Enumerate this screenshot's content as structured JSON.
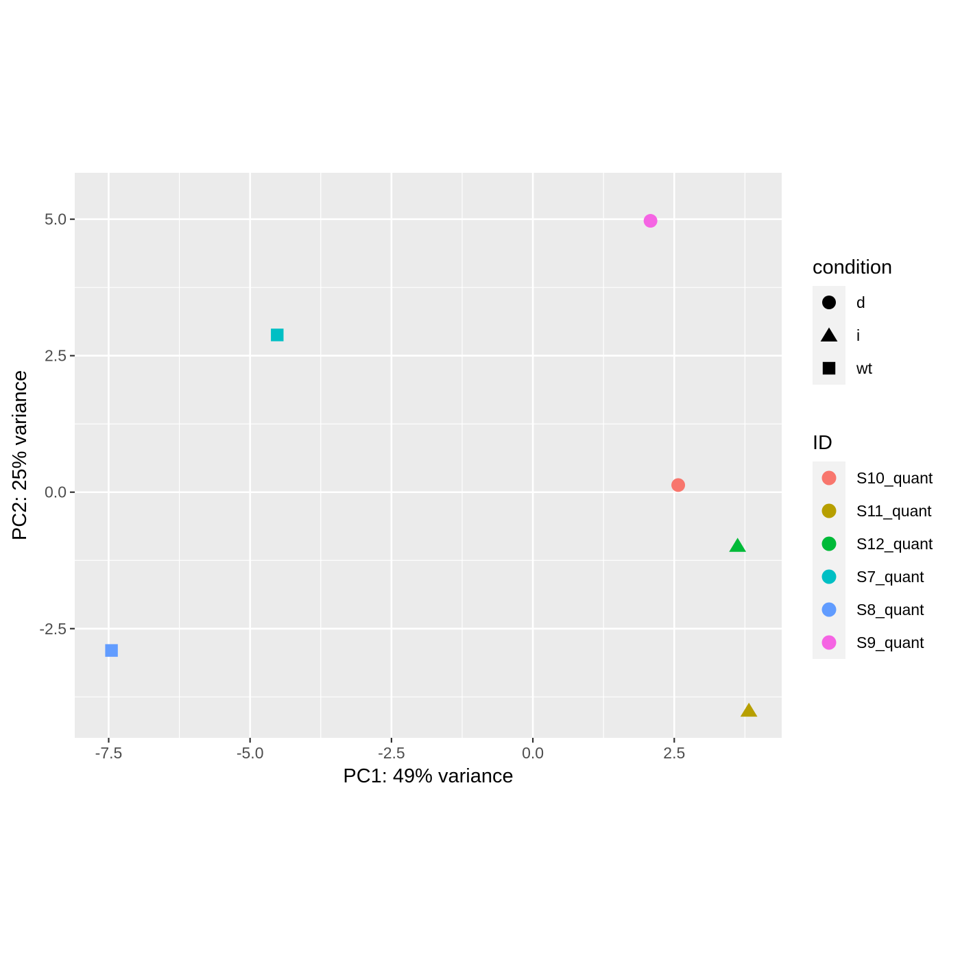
{
  "chart_data": {
    "type": "scatter",
    "title": "",
    "xlabel": "PC1: 49% variance",
    "ylabel": "PC2: 25% variance",
    "xlim": [
      -8.1,
      4.4
    ],
    "ylim": [
      -4.5,
      5.85
    ],
    "x_ticks": [
      -7.5,
      -5.0,
      -2.5,
      0.0,
      2.5
    ],
    "x_tick_labels": [
      "-7.5",
      "-5.0",
      "-2.5",
      "0.0",
      "2.5"
    ],
    "y_ticks": [
      -2.5,
      0.0,
      2.5,
      5.0
    ],
    "y_tick_labels": [
      "-2.5",
      "0.0",
      "2.5",
      "5.0"
    ],
    "grid": true,
    "legend_position": "right",
    "points": [
      {
        "id": "S10_quant",
        "condition": "d",
        "x": 2.57,
        "y": 0.13
      },
      {
        "id": "S11_quant",
        "condition": "i",
        "x": 3.82,
        "y": -4.0
      },
      {
        "id": "S12_quant",
        "condition": "i",
        "x": 3.62,
        "y": -0.98
      },
      {
        "id": "S7_quant",
        "condition": "wt",
        "x": -4.52,
        "y": 2.88
      },
      {
        "id": "S8_quant",
        "condition": "wt",
        "x": -7.45,
        "y": -2.9
      },
      {
        "id": "S9_quant",
        "condition": "d",
        "x": 2.08,
        "y": 4.97
      }
    ],
    "legends": [
      {
        "title": "condition",
        "kind": "shape",
        "entries": [
          {
            "label": "d",
            "shape": "circle"
          },
          {
            "label": "i",
            "shape": "triangle"
          },
          {
            "label": "wt",
            "shape": "square"
          }
        ]
      },
      {
        "title": "ID",
        "kind": "color",
        "entries": [
          {
            "label": "S10_quant",
            "color": "#F8766D"
          },
          {
            "label": "S11_quant",
            "color": "#B79F00"
          },
          {
            "label": "S12_quant",
            "color": "#00BA38"
          },
          {
            "label": "S7_quant",
            "color": "#00BFC4"
          },
          {
            "label": "S8_quant",
            "color": "#619CFF"
          },
          {
            "label": "S9_quant",
            "color": "#F564E3"
          }
        ]
      }
    ]
  }
}
